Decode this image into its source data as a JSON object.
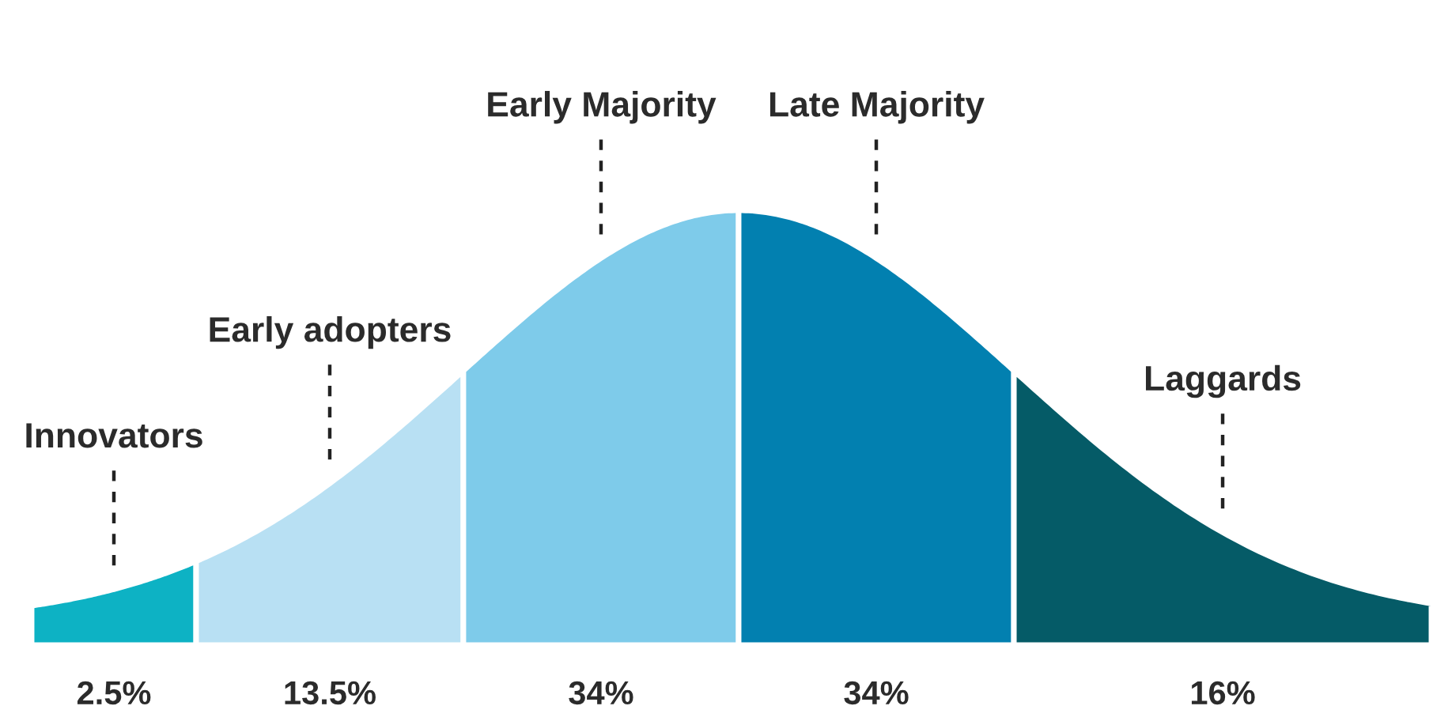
{
  "chart_data": {
    "type": "other",
    "categories": [
      "Innovators",
      "Early adopters",
      "Early Majority",
      "Late Majority",
      "Laggards"
    ],
    "values": [
      2.5,
      13.5,
      34,
      34,
      16
    ],
    "value_labels": [
      "2.5%",
      "13.5%",
      "34%",
      "34%",
      "16%"
    ],
    "colors": [
      "#0db2c4",
      "#b8e0f3",
      "#7ecbea",
      "#0280b0",
      "#055b67"
    ]
  }
}
